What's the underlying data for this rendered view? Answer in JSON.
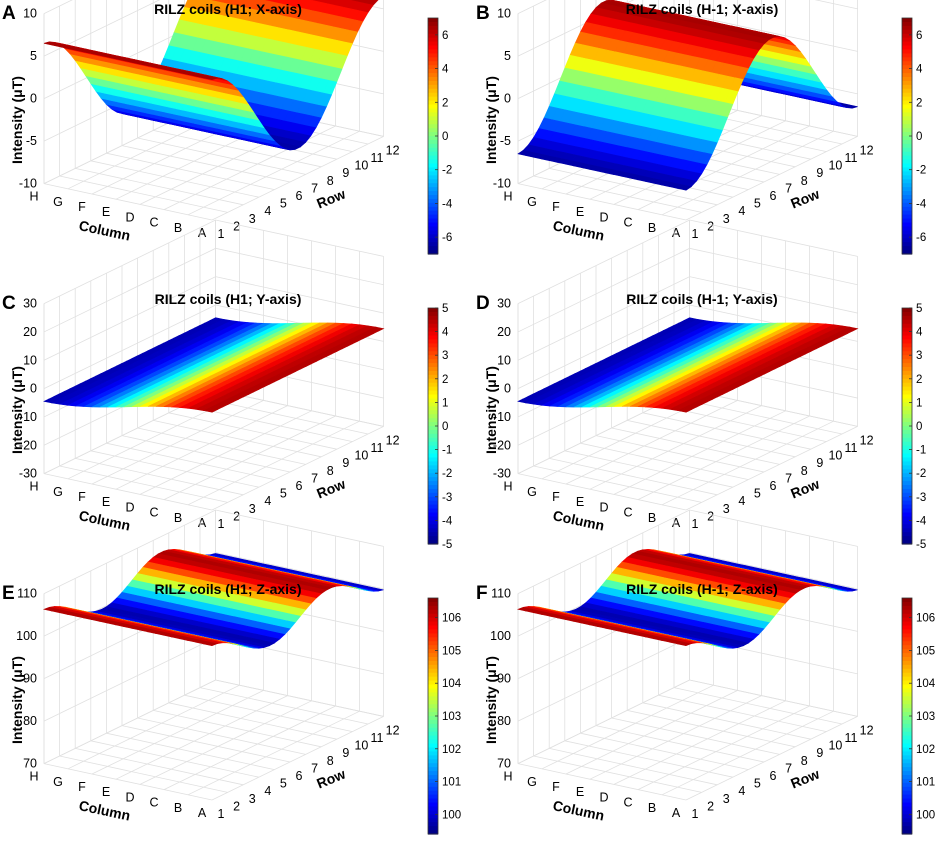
{
  "chart_data": [
    {
      "panel": "A",
      "type": "surface3d",
      "title": "RILZ coils (H1; X-axis)",
      "zlabel": "Intensity (μT)",
      "xlabel": "Column",
      "ylabel": "Row",
      "columns": [
        "H",
        "G",
        "F",
        "E",
        "D",
        "C",
        "B",
        "A"
      ],
      "rows": [
        "1",
        "2",
        "3",
        "4",
        "5",
        "6",
        "7",
        "8",
        "9",
        "10",
        "11",
        "12"
      ],
      "zticks": [
        "10",
        "5",
        "0",
        "-5",
        "-10"
      ],
      "zlim": [
        -10,
        10
      ],
      "colorbar": {
        "ticks": [
          "6",
          "4",
          "2",
          "0",
          "-2",
          "-4",
          "-6"
        ],
        "range": [
          -7,
          7
        ]
      },
      "surface_function": "z = 6.5 * cos(pi * (r - 1) / 5.5)",
      "data_summary": "Surface constant along columns; varies with row between about -6.5 (dark blue) and 6.5 (dark red)."
    },
    {
      "panel": "B",
      "type": "surface3d",
      "title": "RILZ coils (H-1; X-axis)",
      "zlabel": "Intensity (μT)",
      "xlabel": "Column",
      "ylabel": "Row",
      "columns": [
        "H",
        "G",
        "F",
        "E",
        "D",
        "C",
        "B",
        "A"
      ],
      "rows": [
        "1",
        "2",
        "3",
        "4",
        "5",
        "6",
        "7",
        "8",
        "9",
        "10",
        "11",
        "12"
      ],
      "zticks": [
        "10",
        "5",
        "0",
        "-5",
        "-10"
      ],
      "zlim": [
        -10,
        10
      ],
      "colorbar": {
        "ticks": [
          "6",
          "4",
          "2",
          "0",
          "-2",
          "-4",
          "-6"
        ],
        "range": [
          -7,
          7
        ]
      },
      "surface_function": "z = -6.5 * cos(pi * (r - 1) / 5.5)",
      "data_summary": "Surface constant along columns; varies with row, opposite sign to panel A."
    },
    {
      "panel": "C",
      "type": "surface3d",
      "title": "RILZ coils (H1; Y-axis)",
      "zlabel": "Intensity (μT)",
      "xlabel": "Column",
      "ylabel": "Row",
      "columns": [
        "H",
        "G",
        "F",
        "E",
        "D",
        "C",
        "B",
        "A"
      ],
      "rows": [
        "1",
        "2",
        "3",
        "4",
        "5",
        "6",
        "7",
        "8",
        "9",
        "10",
        "11",
        "12"
      ],
      "zticks": [
        "30",
        "20",
        "10",
        "0",
        "-10",
        "-20",
        "-30"
      ],
      "zlim": [
        -30,
        30
      ],
      "colorbar": {
        "ticks": [
          "5",
          "4",
          "3",
          "2",
          "1",
          "0",
          "-1",
          "-2",
          "-3",
          "-4",
          "-5"
        ],
        "range": [
          -5,
          5
        ]
      },
      "surface_function": "z = 4.5 * cos(pi * (c - 1) / 7)",
      "data_summary": "Nearly flat surface near 0 μT, tilting from about +4.5 to -4.5 across columns."
    },
    {
      "panel": "D",
      "type": "surface3d",
      "title": "RILZ coils (H-1; Y-axis)",
      "zlabel": "Intensity (μT)",
      "xlabel": "Column",
      "ylabel": "Row",
      "columns": [
        "H",
        "G",
        "F",
        "E",
        "D",
        "C",
        "B",
        "A"
      ],
      "rows": [
        "1",
        "2",
        "3",
        "4",
        "5",
        "6",
        "7",
        "8",
        "9",
        "10",
        "11",
        "12"
      ],
      "zticks": [
        "30",
        "20",
        "10",
        "0",
        "-10",
        "-20",
        "-30"
      ],
      "zlim": [
        -30,
        30
      ],
      "colorbar": {
        "ticks": [
          "5",
          "4",
          "3",
          "2",
          "1",
          "0",
          "-1",
          "-2",
          "-3",
          "-4",
          "-5"
        ],
        "range": [
          -5,
          5
        ]
      },
      "surface_function": "z = 4.5 * cos(pi * (c - 1) / 7)",
      "data_summary": "Same as panel C."
    },
    {
      "panel": "E",
      "type": "surface3d",
      "title": "RILZ coils (H1; Z-axis)",
      "zlabel": "Intensity (μT)",
      "xlabel": "Column",
      "ylabel": "Row",
      "columns": [
        "H",
        "G",
        "F",
        "E",
        "D",
        "C",
        "B",
        "A"
      ],
      "rows": [
        "1",
        "2",
        "3",
        "4",
        "5",
        "6",
        "7",
        "8",
        "9",
        "10",
        "11",
        "12"
      ],
      "zticks": [
        "110",
        "100",
        "90",
        "80",
        "70"
      ],
      "zlim": [
        70,
        110
      ],
      "colorbar": {
        "ticks": [
          "106",
          "105",
          "104",
          "103",
          "102",
          "101",
          "100"
        ],
        "range": [
          99.4,
          106.6
        ]
      },
      "surface_function": "z = 103 + 3.3 * cos(2 * pi * (r - 1) / 7.5)",
      "data_summary": "Wavy surface near 100-106 μT with two red crests and one blue trough along rows."
    },
    {
      "panel": "F",
      "type": "surface3d",
      "title": "RILZ coils (H-1; Z-axis)",
      "zlabel": "Intensity (μT)",
      "xlabel": "Column",
      "ylabel": "Row",
      "columns": [
        "H",
        "G",
        "F",
        "E",
        "D",
        "C",
        "B",
        "A"
      ],
      "rows": [
        "1",
        "2",
        "3",
        "4",
        "5",
        "6",
        "7",
        "8",
        "9",
        "10",
        "11",
        "12"
      ],
      "zticks": [
        "110",
        "100",
        "90",
        "80",
        "70"
      ],
      "zlim": [
        70,
        110
      ],
      "colorbar": {
        "ticks": [
          "106",
          "105",
          "104",
          "103",
          "102",
          "101",
          "100"
        ],
        "range": [
          99.4,
          106.6
        ]
      },
      "surface_function": "z = 103 + 3.3 * cos(2 * pi * (r - 1) / 7.5)",
      "data_summary": "Same pattern as panel E."
    }
  ]
}
